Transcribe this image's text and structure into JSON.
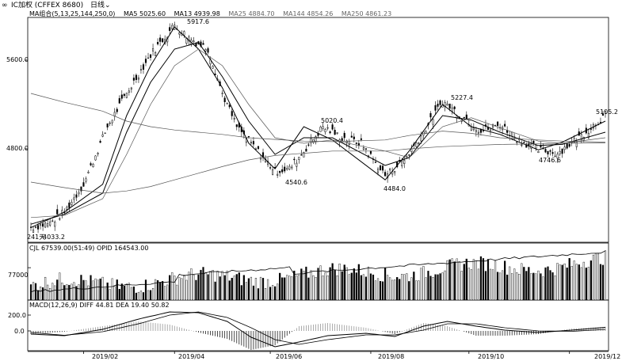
{
  "window": {
    "link_icon": "link-icon",
    "title": "IC加权 (CFFEX 8680)",
    "period_label": "日线",
    "period_icon": "chevron-down-icon"
  },
  "ma_legend": {
    "name": "MA组合(5,13,25,144,250,0)",
    "items": [
      {
        "label": "MA5 5025.60",
        "color": "#000000"
      },
      {
        "label": "MA13 4939.98",
        "color": "#000000"
      },
      {
        "label": "MA25 4884.70",
        "color": "#666666"
      },
      {
        "label": "MA144 4854.26",
        "color": "#666666"
      },
      {
        "label": "MA250 4861.23",
        "color": "#666666"
      }
    ]
  },
  "price_axis": {
    "ticks": [
      "5600.0",
      "4800.0"
    ],
    "values": [
      5600,
      4800
    ]
  },
  "price_annotations": [
    {
      "text": "5917.6",
      "date": "2019-04-08",
      "value": 5917.6
    },
    {
      "text": "4540.6",
      "date": "2019-06-06",
      "value": 4540.6
    },
    {
      "text": "5020.4",
      "date": "2019-06-27",
      "value": 5020.4
    },
    {
      "text": "4484.0",
      "date": "2019-08-06",
      "value": 4484.0
    },
    {
      "text": "5227.4",
      "date": "2019-09-12",
      "value": 5227.4
    },
    {
      "text": "4746.6",
      "date": "2019-11-11",
      "value": 4746.6
    },
    {
      "text": "5105.2",
      "date": "2019-12-10",
      "value": 5105.2
    },
    {
      "text": "4033.2",
      "date": "2019-01-04",
      "value": 4033.2
    }
  ],
  "bars_count_label": "241天",
  "volume_panel": {
    "legend": "CJL   67539.00(51:49)   OPID 164543.00",
    "tick": "77000",
    "tick_value": 77000
  },
  "macd_panel": {
    "legend": "MACD(12,26,9)   DIFF 44.81   DEA 19.40   50.82",
    "ticks": [
      "200.0",
      "0.0"
    ],
    "tick_values": [
      200,
      0
    ]
  },
  "time_axis": {
    "labels": [
      "2019/02",
      "2019/04",
      "2019/06",
      "2019/08",
      "2019/10",
      "2019/12"
    ]
  },
  "chart_data": {
    "type": "line",
    "instrument": "IC加权 (CFFEX 8680)",
    "period": "日线",
    "bars": 241,
    "x": [
      "2019-01-04",
      "2019-01-25",
      "2019-02-15",
      "2019-03-01",
      "2019-03-15",
      "2019-04-08",
      "2019-04-22",
      "2019-05-06",
      "2019-05-20",
      "2019-06-06",
      "2019-06-27",
      "2019-07-15",
      "2019-08-06",
      "2019-08-20",
      "2019-09-12",
      "2019-09-30",
      "2019-10-21",
      "2019-11-11",
      "2019-11-25",
      "2019-12-10"
    ],
    "series": [
      {
        "name": "MA5",
        "values": [
          4090,
          4230,
          4480,
          5100,
          5550,
          5900,
          5700,
          5350,
          4850,
          4620,
          5000,
          4880,
          4520,
          4780,
          5200,
          5000,
          4930,
          4790,
          4860,
          5050
        ]
      },
      {
        "name": "MA13",
        "values": [
          4120,
          4210,
          4400,
          4950,
          5400,
          5700,
          5760,
          5450,
          5050,
          4750,
          4900,
          4900,
          4650,
          4720,
          5100,
          5060,
          4950,
          4830,
          4840,
          4950
        ]
      },
      {
        "name": "MA25",
        "values": [
          4180,
          4200,
          4350,
          4750,
          5200,
          5550,
          5700,
          5550,
          5200,
          4900,
          4850,
          4880,
          4780,
          4720,
          5000,
          5080,
          4990,
          4870,
          4850,
          4900
        ]
      },
      {
        "name": "MA144",
        "values": [
          4500,
          4450,
          4400,
          4420,
          4460,
          4520,
          4580,
          4640,
          4700,
          4740,
          4760,
          4780,
          4780,
          4800,
          4820,
          4830,
          4840,
          4845,
          4850,
          4854
        ]
      },
      {
        "name": "MA250",
        "values": [
          5300,
          5220,
          5140,
          5050,
          5000,
          4970,
          4950,
          4930,
          4900,
          4885,
          4870,
          4865,
          4880,
          4920,
          4960,
          4940,
          4900,
          4880,
          4870,
          4861
        ]
      }
    ],
    "y_axis_ticks": [
      5600,
      4800
    ],
    "volume_tick": 77000,
    "macd_ticks": [
      200,
      0
    ],
    "grid": false,
    "legend_position": "top-left"
  }
}
